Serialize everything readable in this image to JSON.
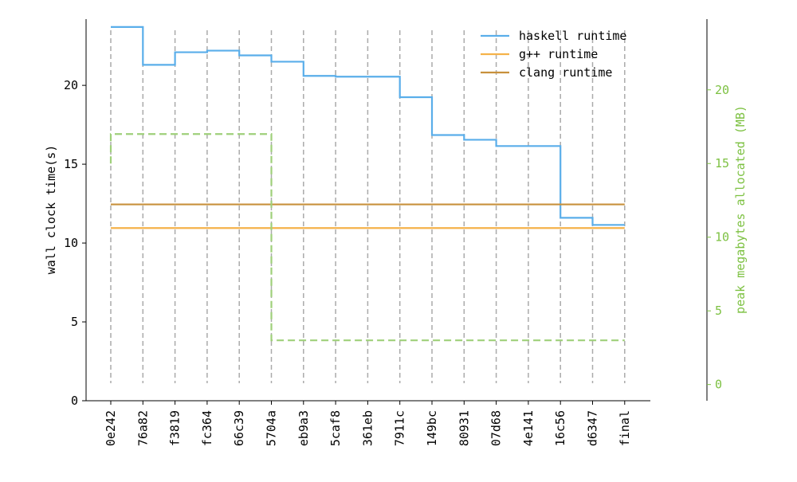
{
  "chart_data": {
    "type": "line",
    "title": "",
    "categories": [
      "0e242",
      "76a82",
      "f3819",
      "fc364",
      "66c39",
      "5704a",
      "eb9a3",
      "5caf8",
      "361eb",
      "7911c",
      "149bc",
      "80931",
      "07d68",
      "4e141",
      "16c56",
      "d6347",
      "final"
    ],
    "y_left": {
      "label": "wall clock time(s)",
      "ylim": [
        0,
        24.2
      ],
      "ticks": [
        0,
        5,
        10,
        15,
        20
      ],
      "color": "#000000"
    },
    "y_right": {
      "label": "peak megabytes allocated (MB)",
      "ylim": [
        -1.1,
        24.8
      ],
      "ticks": [
        0,
        5,
        10,
        15,
        20
      ],
      "color": "#7dc142"
    },
    "series": [
      {
        "name": "haskell runtime",
        "axis": "left",
        "style": "step",
        "color": "#5aaeea",
        "values": [
          23.7,
          21.3,
          22.1,
          22.2,
          21.9,
          21.5,
          20.6,
          20.55,
          20.55,
          19.25,
          16.85,
          16.55,
          16.15,
          16.15,
          11.6,
          11.15,
          11.15
        ]
      },
      {
        "name": "g++ runtime",
        "axis": "left",
        "style": "line",
        "color": "#f5b24a",
        "values": [
          10.95,
          10.95,
          10.95,
          10.95,
          10.95,
          10.95,
          10.95,
          10.95,
          10.95,
          10.95,
          10.95,
          10.95,
          10.95,
          10.95,
          10.95,
          10.95,
          10.95
        ]
      },
      {
        "name": "clang runtime",
        "axis": "left",
        "style": "line",
        "color": "#c8913c",
        "values": [
          12.45,
          12.45,
          12.45,
          12.45,
          12.45,
          12.45,
          12.45,
          12.45,
          12.45,
          12.45,
          12.45,
          12.45,
          12.45,
          12.45,
          12.45,
          12.45,
          12.45
        ]
      },
      {
        "axis": "right",
        "style": "step-dashed",
        "color": "#9fd07a",
        "values": [
          17.0,
          17.0,
          17.0,
          17.0,
          17.0,
          3.0,
          3.0,
          3.0,
          3.0,
          3.0,
          3.0,
          3.0,
          3.0,
          3.0,
          3.0,
          3.0,
          3.0
        ]
      }
    ],
    "vertical_marker_lines": {
      "style": "dashed",
      "color": "#aaaaaa",
      "at": "every category"
    },
    "legend": {
      "placement": "top-right",
      "entries": [
        "haskell runtime",
        "g++ runtime",
        "clang runtime"
      ]
    },
    "grid": false
  }
}
